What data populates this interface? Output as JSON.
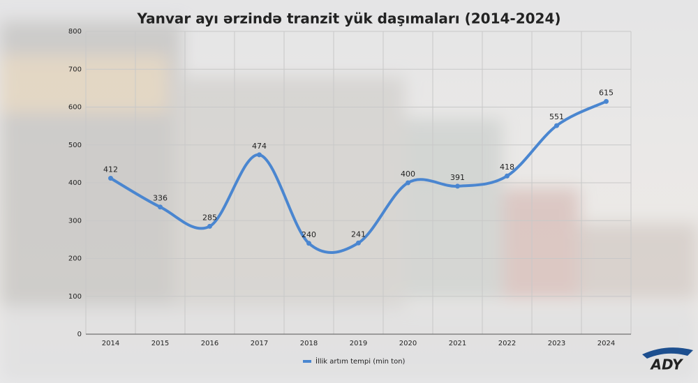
{
  "chart_data": {
    "type": "line",
    "title": "Yanvar ayı ərzində tranzit yük daşımaları (2014-2024)",
    "categories": [
      "2014",
      "2015",
      "2016",
      "2017",
      "2018",
      "2019",
      "2020",
      "2021",
      "2022",
      "2023",
      "2024"
    ],
    "series": [
      {
        "name": "İllik artım tempi (min ton)",
        "color": "#4a86d0",
        "values": [
          412,
          336,
          285,
          474,
          240,
          241,
          400,
          391,
          418,
          551,
          615
        ]
      }
    ],
    "ylim": [
      0,
      800
    ],
    "yticks": [
      0,
      100,
      200,
      300,
      400,
      500,
      600,
      700,
      800
    ],
    "grid": true,
    "smooth": true,
    "legend": "bottom"
  },
  "logo": "ADY"
}
